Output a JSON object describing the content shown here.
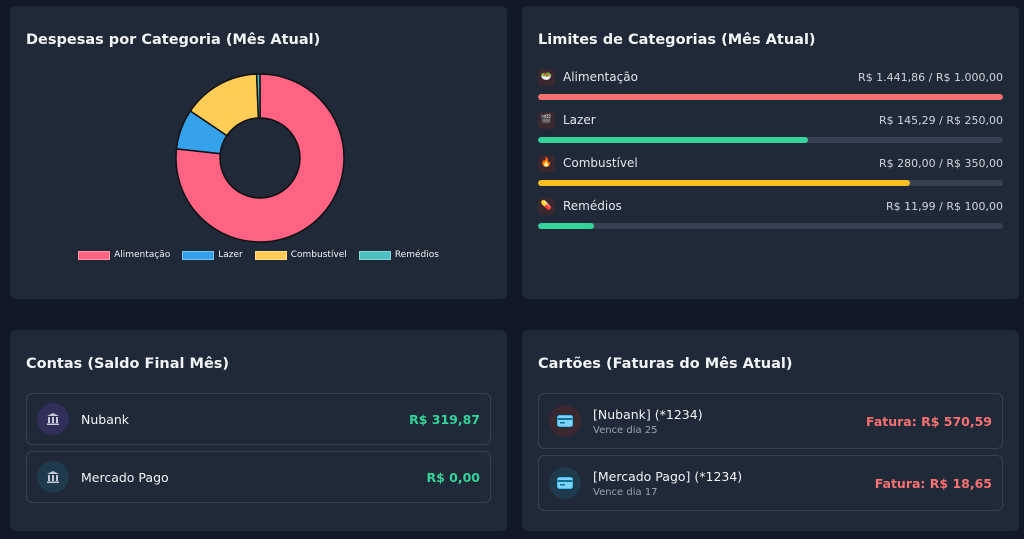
{
  "expenses": {
    "title": "Despesas por Categoria (Mês Atual)",
    "chart_data": {
      "type": "pie",
      "categories": [
        "Alimentação",
        "Lazer",
        "Combustível",
        "Remédios"
      ],
      "values": [
        1441.86,
        145.29,
        280.0,
        11.99
      ],
      "colors": [
        "#ff6384",
        "#36a2eb",
        "#ffcd56",
        "#4bc0c0"
      ],
      "legend": "bottom"
    }
  },
  "limits": {
    "title": "Limites de Categorias (Mês Atual)",
    "items": [
      {
        "icon": "salad-icon",
        "glyph": "🥗",
        "name": "Alimentação",
        "values": "R$ 1.441,86 / R$ 1.000,00",
        "progress": 1.0,
        "color": "#f87171"
      },
      {
        "icon": "film-icon",
        "glyph": "🎬",
        "name": "Lazer",
        "values": "R$ 145,29 / R$ 250,00",
        "progress": 0.58,
        "color": "#34d399"
      },
      {
        "icon": "fuel-icon",
        "glyph": "🔥",
        "name": "Combustível",
        "values": "R$ 280,00 / R$ 350,00",
        "progress": 0.8,
        "color": "#fbbf24"
      },
      {
        "icon": "pill-icon",
        "glyph": "💊",
        "name": "Remédios",
        "values": "R$ 11,99 / R$ 100,00",
        "progress": 0.12,
        "color": "#34d399"
      }
    ]
  },
  "accounts": {
    "title": "Contas (Saldo Final Mês)",
    "items": [
      {
        "name": "Nubank",
        "value": "R$ 319,87",
        "icon": "bank-icon",
        "glyph": "🏛"
      },
      {
        "name": "Mercado Pago",
        "value": "R$ 0,00",
        "icon": "bank-icon",
        "glyph": "🏛"
      }
    ]
  },
  "cards": {
    "title": "Cartões (Faturas do Mês Atual)",
    "items": [
      {
        "name": "[Nubank] (*1234)",
        "due": "Vence dia 25",
        "value": "Fatura: R$ 570,59",
        "icon": "credit-card-icon",
        "glyph": "💳"
      },
      {
        "name": "[Mercado Pago] (*1234)",
        "due": "Vence dia 17",
        "value": "Fatura: R$ 18,65",
        "icon": "credit-card-icon",
        "glyph": "💳"
      }
    ]
  }
}
